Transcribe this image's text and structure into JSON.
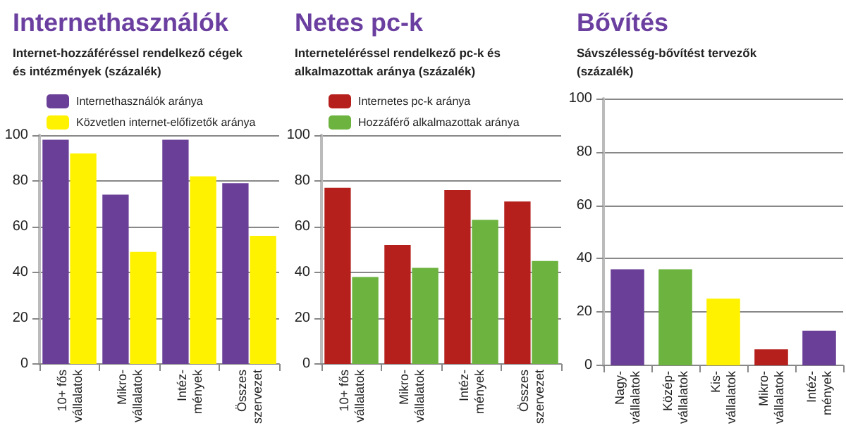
{
  "chart_data": [
    {
      "type": "bar",
      "title": "Internethasználók",
      "subtitle": "Internet-hozzáféréssel rendelkező cégek\nés intézmények (százalék)",
      "categories": [
        "10+ fős\nvállalatok",
        "Mikro-\nvállalatok",
        "Intéz-\nmények",
        "Összes\nszervezet"
      ],
      "series": [
        {
          "name": "Internethasználók aránya",
          "color": "#6a3f98",
          "values": [
            98,
            74,
            98,
            79
          ]
        },
        {
          "name": "Közvetlen internet-előfizetők aránya",
          "color": "#fff200",
          "values": [
            92,
            49,
            82,
            56
          ]
        }
      ],
      "ylim": [
        0,
        100
      ],
      "yticks": [
        0,
        20,
        40,
        60,
        80,
        100
      ],
      "grid": "y",
      "legend": "top"
    },
    {
      "type": "bar",
      "title": "Netes pc-k",
      "subtitle": "Interneteléréssel rendelkező pc-k és\nalkalmazottak aránya (százalék)",
      "categories": [
        "10+ fős\nvállalatok",
        "Mikro-\nvállalatok",
        "Intéz-\nmények",
        "Összes\nszervezet"
      ],
      "series": [
        {
          "name": "Internetes pc-k aránya",
          "color": "#b5201d",
          "values": [
            77,
            52,
            76,
            71
          ]
        },
        {
          "name": "Hozzáférő alkalmazottak aránya",
          "color": "#6db33f",
          "values": [
            38,
            42,
            63,
            45
          ]
        }
      ],
      "ylim": [
        0,
        100
      ],
      "yticks": [
        0,
        20,
        40,
        60,
        80,
        100
      ],
      "grid": "y",
      "legend": "top"
    },
    {
      "type": "bar",
      "title": "Bővítés",
      "subtitle": "Sávszélesség-bővítést tervezők\n(százalék)",
      "categories": [
        "Nagy-\nvállalatok",
        "Közép-\nvállalatok",
        "Kis-\nvállalatok",
        "Mikro-\nvállalatok",
        "Intéz-\nmények"
      ],
      "values": [
        36,
        36,
        25,
        6,
        13
      ],
      "colors": [
        "#6a3f98",
        "#6db33f",
        "#fff200",
        "#b5201d",
        "#6a3f98"
      ],
      "ylim": [
        0,
        100
      ],
      "yticks": [
        0,
        20,
        40,
        60,
        80,
        100
      ],
      "grid": "y"
    }
  ]
}
